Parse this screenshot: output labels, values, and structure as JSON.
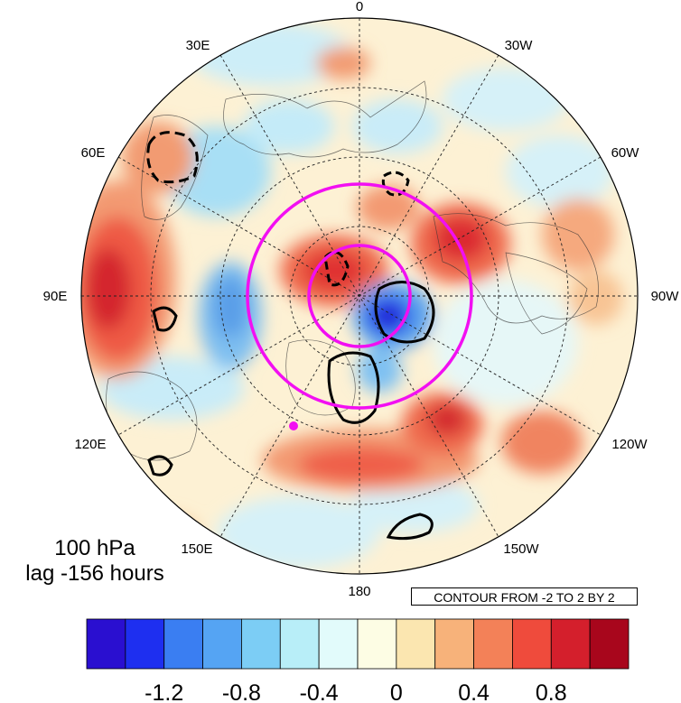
{
  "map": {
    "longitude_labels": [
      "0",
      "30W",
      "60W",
      "90W",
      "120W",
      "150W",
      "180",
      "150E",
      "120E",
      "90E",
      "60E",
      "30E"
    ]
  },
  "caption": {
    "level": "100 hPa",
    "lag": "lag -156 hours"
  },
  "contour_note": "CONTOUR FROM -2 TO 2 BY 2",
  "colorbar": {
    "colors": [
      "#2a0fd0",
      "#1e2ff0",
      "#3a7ef2",
      "#55a4f3",
      "#7ccdf5",
      "#b8eef8",
      "#e2fbfb",
      "#fdfde4",
      "#fbe6b0",
      "#f7b27a",
      "#f38158",
      "#ef4b3c",
      "#d41f2c",
      "#a8061c"
    ],
    "tick_labels": [
      "-1.2",
      "-0.8",
      "-0.4",
      "0",
      "0.4",
      "0.8"
    ]
  },
  "marker_color": "#f20ff2",
  "contour_color": "#000000"
}
